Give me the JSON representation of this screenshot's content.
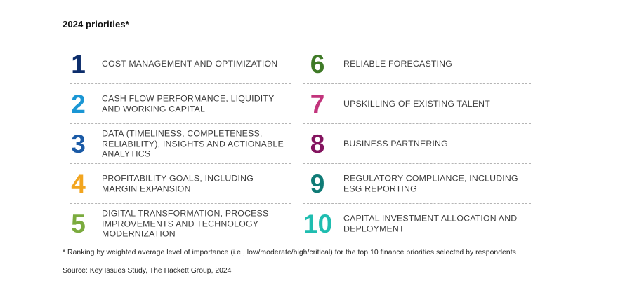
{
  "title": "2024 priorities*",
  "priorities": [
    {
      "rank": "1",
      "label": "COST MANAGEMENT AND OPTIMIZATION",
      "color": "#0c2d6b"
    },
    {
      "rank": "2",
      "label": "CASH FLOW PERFORMANCE, LIQUIDITY AND WORKING CAPITAL",
      "color": "#1a96d4"
    },
    {
      "rank": "3",
      "label": "DATA (TIMELINESS, COMPLETENESS, RELIABILITY), INSIGHTS AND ACTIONABLE ANALYTICS",
      "color": "#1a5aa6"
    },
    {
      "rank": "4",
      "label": "PROFITABILITY GOALS, INCLUDING MARGIN EXPANSION",
      "color": "#f2a51f"
    },
    {
      "rank": "5",
      "label": "DIGITAL TRANSFORMATION, PROCESS IMPROVEMENTS AND TECHNOLOGY MODERNIZATION",
      "color": "#7bab3e"
    },
    {
      "rank": "6",
      "label": "RELIABLE FORECASTING",
      "color": "#3f7a27"
    },
    {
      "rank": "7",
      "label": "UPSKILLING OF EXISTING TALENT",
      "color": "#c2347c"
    },
    {
      "rank": "8",
      "label": "BUSINESS PARTNERING",
      "color": "#84145f"
    },
    {
      "rank": "9",
      "label": "REGULATORY COMPLIANCE, INCLUDING ESG REPORTING",
      "color": "#0f7b76"
    },
    {
      "rank": "10",
      "label": "CAPITAL INVESTMENT ALLOCATION AND DEPLOYMENT",
      "color": "#1fbdb0"
    }
  ],
  "footnote": "* Ranking by weighted average level of importance (i.e., low/moderate/high/critical) for the top 10 finance priorities selected by respondents",
  "source": "Source: Key Issues Study, The Hackett Group, 2024"
}
